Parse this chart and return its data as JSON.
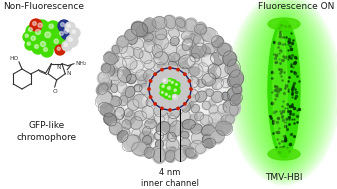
{
  "title_left": "Non-Fluorescence",
  "title_right": "Fluorescence ON",
  "label_left": "GFP-like\nchromophore",
  "label_center": "4 nm\ninner channel",
  "label_right": "TMV-HBI",
  "bg_color": "#ffffff",
  "text_color": "#1a1a1a",
  "figsize": [
    3.37,
    1.89
  ],
  "dpi": 100,
  "green_bright": "#44ee00",
  "green_glow": "#88ff44",
  "mol_green": "#44dd00",
  "mol_red": "#cc2200",
  "mol_blue": "#223388",
  "mol_white": "#d8d8d8",
  "mol_dark_blue": "#112266",
  "virus_light": "#d0d0d0",
  "virus_dark": "#555555"
}
